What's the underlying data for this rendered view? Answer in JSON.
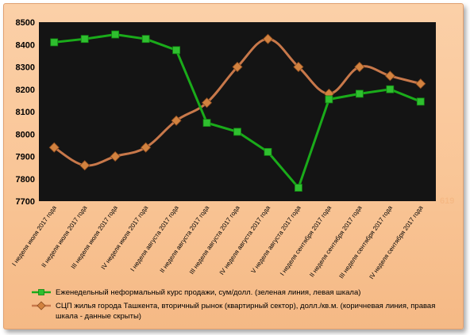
{
  "chart_data": {
    "type": "line",
    "categories": [
      "I неделя июля 2017 года",
      "II неделя июля 2017 года",
      "III неделя июля 2017 года",
      "IV неделя июля 2017 года",
      "I неделя августа 2017 года",
      "II неделя августа 2017 года",
      "III неделя августа 2017 года",
      "IV неделя августа 2017 года",
      "V неделя августа 2017 года",
      "I неделя сентября 2017 года",
      "II неделя сентября 2017 года",
      "III неделя сентября 2017 года",
      "IV неделя сентября 2017 года"
    ],
    "series": [
      {
        "name": "Еженедельный неформальный курс продажи, сум/долл. (зеленая линия, левая шкала)",
        "axis": "left",
        "color": "#1aab1a",
        "values": [
          8410,
          8425,
          8445,
          8425,
          8375,
          8050,
          8010,
          7920,
          7760,
          8155,
          8180,
          8200,
          8145
        ]
      },
      {
        "name": "СЦП жилья города Ташкента, вторичный рынок (квартирный сектор), долл./кв.м. (коричневая линия, правая шкала - данные скрыты)",
        "axis": "right",
        "color": "#c8784a",
        "values": [
          7940,
          7860,
          7900,
          7940,
          8060,
          8140,
          8300,
          8425,
          8300,
          8180,
          8300,
          8260,
          8225
        ]
      }
    ],
    "left_axis": {
      "ylim": [
        7700,
        8500
      ],
      "ticks": [
        "7700",
        "7800",
        "7900",
        "8000",
        "8100",
        "8200",
        "8300",
        "8400",
        "8500"
      ]
    },
    "right_axis_label_visible": "619",
    "grid": false,
    "plot_background": "#141414",
    "legend_placement": "bottom"
  }
}
